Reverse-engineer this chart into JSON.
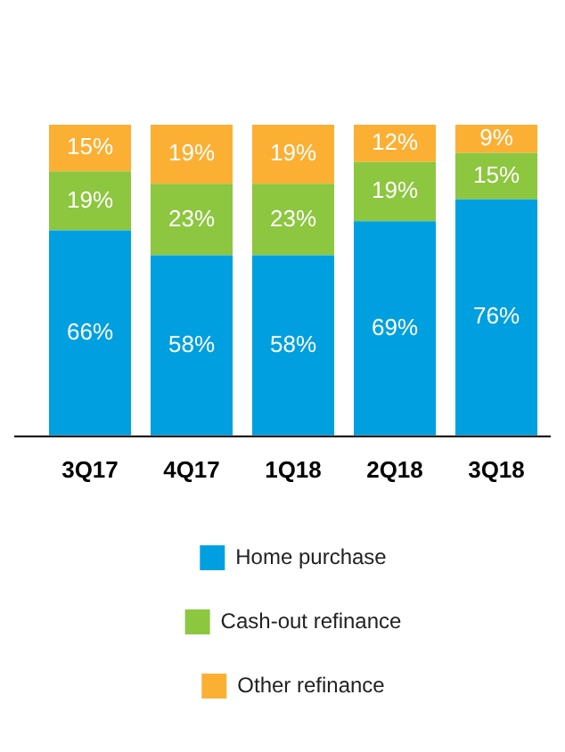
{
  "chart_data": {
    "type": "bar",
    "stacked": true,
    "legend": "bottom",
    "tick_labels": "x",
    "grid": false,
    "categories": [
      "3Q17",
      "4Q17",
      "1Q18",
      "2Q18",
      "3Q18"
    ],
    "series": [
      {
        "name": "Home purchase",
        "color": "#00a0e0",
        "values": [
          66,
          58,
          58,
          69,
          76
        ],
        "value_labels": [
          "66%",
          "58%",
          "58%",
          "69%",
          "76%"
        ]
      },
      {
        "name": "Cash-out refinance",
        "color": "#8dc63f",
        "values": [
          19,
          23,
          23,
          19,
          15
        ],
        "value_labels": [
          "19%",
          "23%",
          "23%",
          "19%",
          "15%"
        ]
      },
      {
        "name": "Other refinance",
        "color": "#fbb034",
        "values": [
          15,
          19,
          19,
          12,
          9
        ],
        "value_labels": [
          "15%",
          "19%",
          "19%",
          "12%",
          "9%"
        ]
      }
    ]
  }
}
